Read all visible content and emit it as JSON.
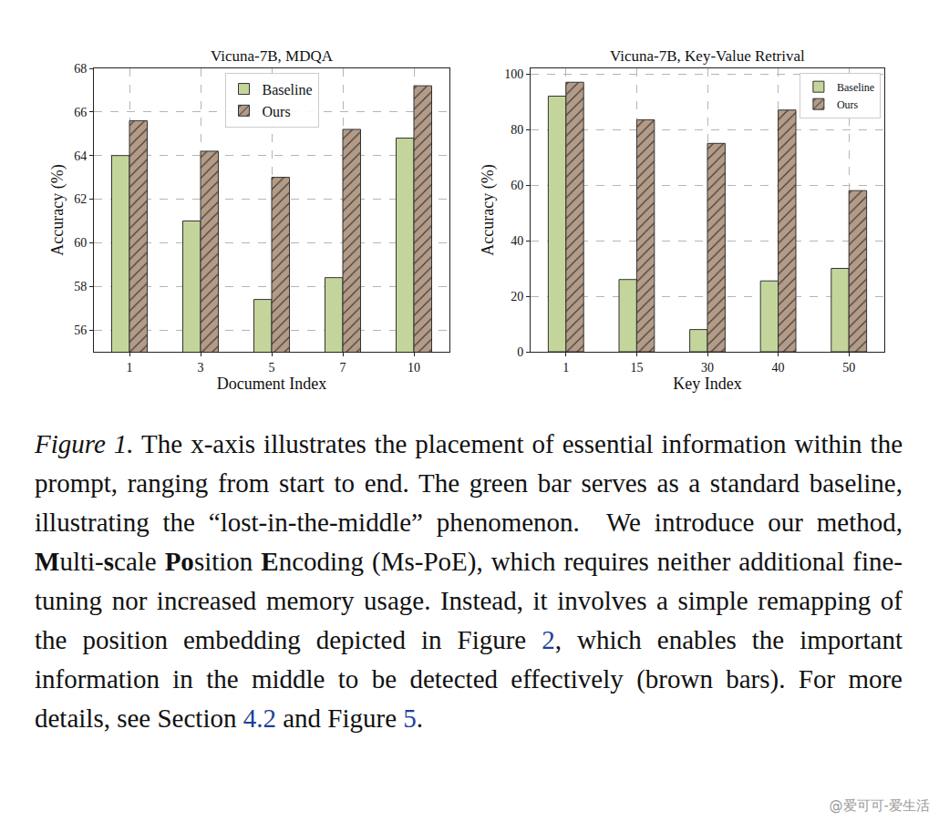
{
  "chart_data": [
    {
      "type": "bar",
      "title": "Vicuna-7B, MDQA",
      "x_label": "Document Index",
      "y_label": "Accuracy (%)",
      "categories": [
        "1",
        "3",
        "5",
        "7",
        "10"
      ],
      "series": [
        {
          "name": "Baseline",
          "color": "#c4d59c",
          "values": [
            64,
            61,
            57.4,
            58.4,
            64.8
          ]
        },
        {
          "name": "Ours",
          "color": "#b29c89",
          "marker": "hatch",
          "values": [
            65.6,
            64.2,
            63,
            65.2,
            67.2
          ]
        }
      ],
      "ylim": [
        55,
        68
      ],
      "yticks": [
        56,
        58,
        60,
        62,
        64,
        66,
        68
      ],
      "grid": true,
      "legend": "upper center"
    },
    {
      "type": "bar",
      "title": "Vicuna-7B, Key-Value Retrival",
      "x_label": "Key Index",
      "y_label": "Accuracy (%)",
      "categories": [
        "1",
        "15",
        "30",
        "40",
        "50"
      ],
      "series": [
        {
          "name": "Baseline",
          "color": "#c4d59c",
          "values": [
            92,
            26,
            8,
            25.5,
            30
          ]
        },
        {
          "name": "Ours",
          "color": "#b29c89",
          "marker": "hatch",
          "values": [
            97,
            83.5,
            75,
            87,
            58
          ]
        }
      ],
      "ylim": [
        0,
        102
      ],
      "yticks": [
        0,
        20,
        40,
        60,
        80,
        100
      ],
      "grid": true,
      "legend": "upper right"
    }
  ],
  "caption": [
    {
      "text": "Figure 1.",
      "style": "italic"
    },
    {
      "text": " The x-axis illustrates the placement of essential information within the prompt, ranging from start to end. The green bar serves as a standard baseline, illustrating the “lost-in-the-middle” phenomenon.  We introduce our method, "
    },
    {
      "text": "M",
      "style": "bold"
    },
    {
      "text": "ulti-"
    },
    {
      "text": "s",
      "style": "bold"
    },
    {
      "text": "cale "
    },
    {
      "text": "Po",
      "style": "bold"
    },
    {
      "text": "sition "
    },
    {
      "text": "E",
      "style": "bold"
    },
    {
      "text": "ncoding (Ms-PoE), which requires neither additional fine-tuning nor increased memory usage. Instead, it involves a simple remapping of the position embedding depicted in Figure "
    },
    {
      "text": "2",
      "style": "link"
    },
    {
      "text": ", which enables the important information in the middle to be detected effectively (brown bars). For more details, see Section "
    },
    {
      "text": "4.2",
      "style": "link"
    },
    {
      "text": " and Figure "
    },
    {
      "text": "5",
      "style": "link"
    },
    {
      "text": "."
    }
  ],
  "watermark": "@爱可可-爱生活"
}
